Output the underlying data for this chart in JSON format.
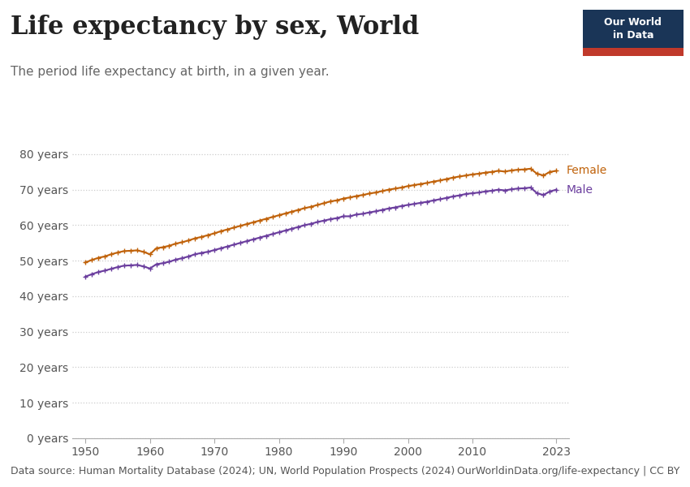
{
  "title": "Life expectancy by sex, World",
  "subtitle": "The period life expectancy at birth, in a given year.",
  "datasource": "Data source: Human Mortality Database (2024); UN, World Population Prospects (2024)",
  "url": "OurWorldinData.org/life-expectancy | CC BY",
  "background_color": "#ffffff",
  "female_color": "#C0620A",
  "male_color": "#6B3E9E",
  "grid_color": "#cccccc",
  "years": [
    1950,
    1951,
    1952,
    1953,
    1954,
    1955,
    1956,
    1957,
    1958,
    1959,
    1960,
    1961,
    1962,
    1963,
    1964,
    1965,
    1966,
    1967,
    1968,
    1969,
    1970,
    1971,
    1972,
    1973,
    1974,
    1975,
    1976,
    1977,
    1978,
    1979,
    1980,
    1981,
    1982,
    1983,
    1984,
    1985,
    1986,
    1987,
    1988,
    1989,
    1990,
    1991,
    1992,
    1993,
    1994,
    1995,
    1996,
    1997,
    1998,
    1999,
    2000,
    2001,
    2002,
    2003,
    2004,
    2005,
    2006,
    2007,
    2008,
    2009,
    2010,
    2011,
    2012,
    2013,
    2014,
    2015,
    2016,
    2017,
    2018,
    2019,
    2020,
    2021,
    2022,
    2023
  ],
  "female": [
    49.5,
    50.2,
    50.8,
    51.2,
    51.8,
    52.3,
    52.7,
    52.8,
    52.9,
    52.5,
    51.8,
    53.5,
    53.8,
    54.2,
    54.8,
    55.2,
    55.7,
    56.3,
    56.7,
    57.2,
    57.7,
    58.3,
    58.8,
    59.3,
    59.8,
    60.3,
    60.8,
    61.3,
    61.8,
    62.3,
    62.8,
    63.3,
    63.8,
    64.3,
    64.8,
    65.2,
    65.7,
    66.2,
    66.7,
    67.0,
    67.5,
    67.8,
    68.2,
    68.5,
    68.9,
    69.2,
    69.6,
    70.0,
    70.3,
    70.6,
    71.0,
    71.3,
    71.6,
    71.9,
    72.3,
    72.6,
    73.0,
    73.4,
    73.7,
    74.0,
    74.3,
    74.5,
    74.8,
    75.0,
    75.3,
    75.1,
    75.4,
    75.6,
    75.7,
    75.9,
    74.5,
    74.0,
    75.0,
    75.3
  ],
  "male": [
    45.5,
    46.2,
    46.8,
    47.2,
    47.7,
    48.2,
    48.6,
    48.7,
    48.8,
    48.4,
    47.8,
    49.0,
    49.3,
    49.7,
    50.3,
    50.7,
    51.2,
    51.8,
    52.2,
    52.5,
    53.0,
    53.5,
    54.0,
    54.5,
    55.0,
    55.5,
    56.0,
    56.5,
    57.0,
    57.5,
    58.0,
    58.5,
    59.0,
    59.5,
    60.0,
    60.4,
    60.9,
    61.3,
    61.7,
    62.0,
    62.5,
    62.5,
    63.0,
    63.2,
    63.6,
    63.9,
    64.3,
    64.7,
    65.0,
    65.4,
    65.7,
    66.0,
    66.3,
    66.6,
    67.0,
    67.3,
    67.7,
    68.1,
    68.4,
    68.8,
    69.0,
    69.2,
    69.5,
    69.7,
    70.0,
    69.8,
    70.1,
    70.3,
    70.4,
    70.6,
    69.0,
    68.5,
    69.5,
    70.0
  ],
  "ylim": [
    0,
    85
  ],
  "yticks": [
    0,
    10,
    20,
    30,
    40,
    50,
    60,
    70,
    80
  ],
  "ytick_labels": [
    "0 years",
    "10 years",
    "20 years",
    "30 years",
    "40 years",
    "50 years",
    "60 years",
    "70 years",
    "80 years"
  ],
  "xlim": [
    1948,
    2025
  ],
  "xticks": [
    1950,
    1960,
    1970,
    1980,
    1990,
    2000,
    2010,
    2023
  ],
  "logo_bg": "#1a3557",
  "logo_red": "#c0392b",
  "title_fontsize": 22,
  "subtitle_fontsize": 11,
  "tick_fontsize": 10,
  "source_fontsize": 9
}
